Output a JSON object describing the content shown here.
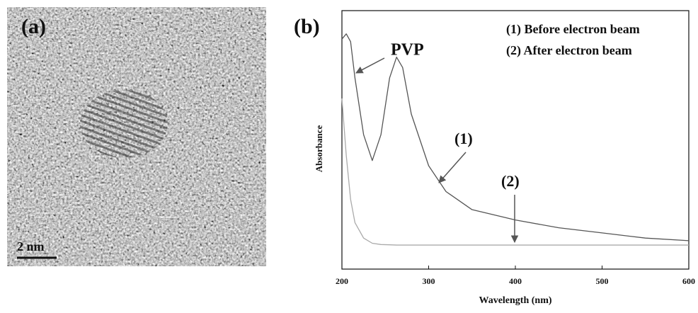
{
  "panel_a": {
    "label": "(a)",
    "scale_bar": "2 nm"
  },
  "chart_data": {
    "type": "line",
    "panel_label": "(b)",
    "x_label": "Wavelength (nm)",
    "y_label": "Absorbance",
    "x": [
      200,
      205,
      210,
      215,
      225,
      235,
      245,
      255,
      263,
      270,
      280,
      300,
      320,
      350,
      400,
      450,
      500,
      550,
      600
    ],
    "series": [
      {
        "name": "(1) Before electron beam",
        "color": "#555555",
        "values": [
          0.89,
          0.91,
          0.88,
          0.74,
          0.52,
          0.42,
          0.52,
          0.74,
          0.82,
          0.78,
          0.6,
          0.4,
          0.3,
          0.23,
          0.19,
          0.16,
          0.14,
          0.12,
          0.11
        ]
      },
      {
        "name": "(2) After electron beam",
        "color": "#aaaaaa",
        "values": [
          0.66,
          0.44,
          0.27,
          0.18,
          0.12,
          0.1,
          0.095,
          0.094,
          0.093,
          0.093,
          0.093,
          0.093,
          0.093,
          0.093,
          0.093,
          0.093,
          0.093,
          0.093,
          0.093
        ]
      }
    ],
    "annotations": [
      "PVP",
      "(1)",
      "(2)"
    ],
    "xlim": [
      200,
      600
    ],
    "xticks": [
      200,
      300,
      400,
      500,
      600
    ],
    "ylim": [
      0,
      1
    ]
  }
}
